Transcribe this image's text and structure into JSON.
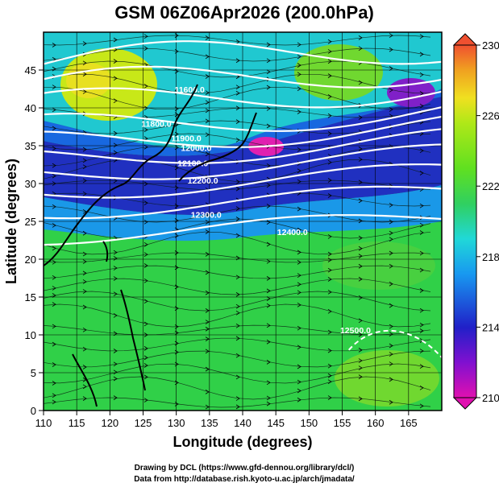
{
  "chart_data": {
    "type": "heatmap",
    "title": "GSM 06Z06Apr2026 (200.0hPa)",
    "xlabel": "Longitude (degrees)",
    "ylabel": "Latitude  (degrees)",
    "xlim": [
      110,
      170
    ],
    "ylim": [
      0,
      50
    ],
    "x_ticks": [
      110,
      115,
      120,
      125,
      130,
      135,
      140,
      145,
      150,
      155,
      160,
      165
    ],
    "y_ticks": [
      0,
      5,
      10,
      15,
      20,
      25,
      30,
      35,
      40,
      45
    ],
    "colorbar": {
      "min": 210,
      "max": 230,
      "ticks": [
        210,
        214,
        218,
        222,
        226,
        230
      ],
      "colors": [
        "#e010b0",
        "#8010d0",
        "#2020c8",
        "#1898f0",
        "#20d8d8",
        "#30d060",
        "#60e020",
        "#b0e818",
        "#f0e020",
        "#f0a020",
        "#f05030"
      ]
    },
    "contour_labels": [
      {
        "text": "11900.0",
        "lon": 131.5,
        "lat": 35.6
      },
      {
        "text": "12000.0",
        "lon": 133.0,
        "lat": 34.3
      },
      {
        "text": "12100.0",
        "lon": 132.5,
        "lat": 32.3
      },
      {
        "text": "12200.0",
        "lon": 134.0,
        "lat": 30.0
      },
      {
        "text": "12300.0",
        "lon": 134.5,
        "lat": 25.5
      },
      {
        "text": "12400.0",
        "lon": 147.5,
        "lat": 23.2
      },
      {
        "text": "11800.0",
        "lon": 127.0,
        "lat": 37.5
      },
      {
        "text": "11600.0",
        "lon": 132.0,
        "lat": 42.0
      },
      {
        "text": "12500.0",
        "lon": 157.0,
        "lat": 10.2
      }
    ],
    "grid": true
  },
  "credits": {
    "line1": "Drawing by DCL (https://www.gfd-dennou.org/library/dcl/)",
    "line2": "Data from http://database.rish.kyoto-u.ac.jp/arch/jmadata/"
  }
}
